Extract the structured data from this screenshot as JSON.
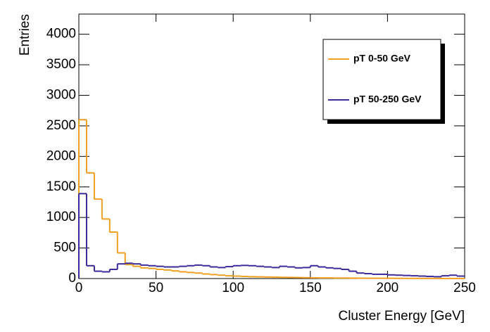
{
  "chart_data": {
    "type": "histogram",
    "xlabel": "Cluster Energy [GeV]",
    "ylabel": "Entries",
    "bins": [
      0,
      5,
      10,
      15,
      20,
      25,
      30,
      35,
      40,
      45,
      50,
      55,
      60,
      65,
      70,
      75,
      80,
      85,
      90,
      95,
      100,
      105,
      110,
      115,
      120,
      125,
      130,
      135,
      140,
      145,
      150,
      155,
      160,
      165,
      170,
      175,
      180,
      185,
      190,
      195,
      200,
      205,
      210,
      215,
      220,
      225,
      230,
      235,
      240,
      245,
      250
    ],
    "series": [
      {
        "name": "pT 0-50 GeV",
        "color": "#f0a020",
        "values": [
          2600,
          1730,
          1300,
          975,
          760,
          420,
          230,
          200,
          175,
          165,
          150,
          140,
          125,
          110,
          100,
          90,
          75,
          65,
          55,
          45,
          40,
          35,
          30,
          28,
          25,
          22,
          20,
          18,
          16,
          14,
          12,
          10,
          10,
          8,
          8,
          7,
          6,
          5,
          5,
          4,
          4,
          3,
          3,
          3,
          2,
          2,
          2,
          1,
          1,
          1
        ]
      },
      {
        "name": "pT 50-250 GeV",
        "color": "#3a2a9a",
        "values": [
          1390,
          210,
          120,
          110,
          150,
          240,
          250,
          240,
          220,
          210,
          200,
          190,
          190,
          200,
          210,
          220,
          210,
          190,
          180,
          195,
          210,
          215,
          210,
          200,
          190,
          180,
          200,
          190,
          175,
          180,
          210,
          190,
          175,
          165,
          150,
          120,
          90,
          80,
          70,
          70,
          60,
          55,
          50,
          45,
          40,
          35,
          30,
          45,
          55,
          40
        ]
      }
    ],
    "xlim": [
      0,
      250
    ],
    "xticks": [
      0,
      50,
      100,
      150,
      200,
      250
    ],
    "ylim": [
      0,
      4330
    ],
    "yticks": [
      0,
      500,
      1000,
      1500,
      2000,
      2500,
      3000,
      3500,
      4000
    ],
    "legend": "top-right"
  }
}
